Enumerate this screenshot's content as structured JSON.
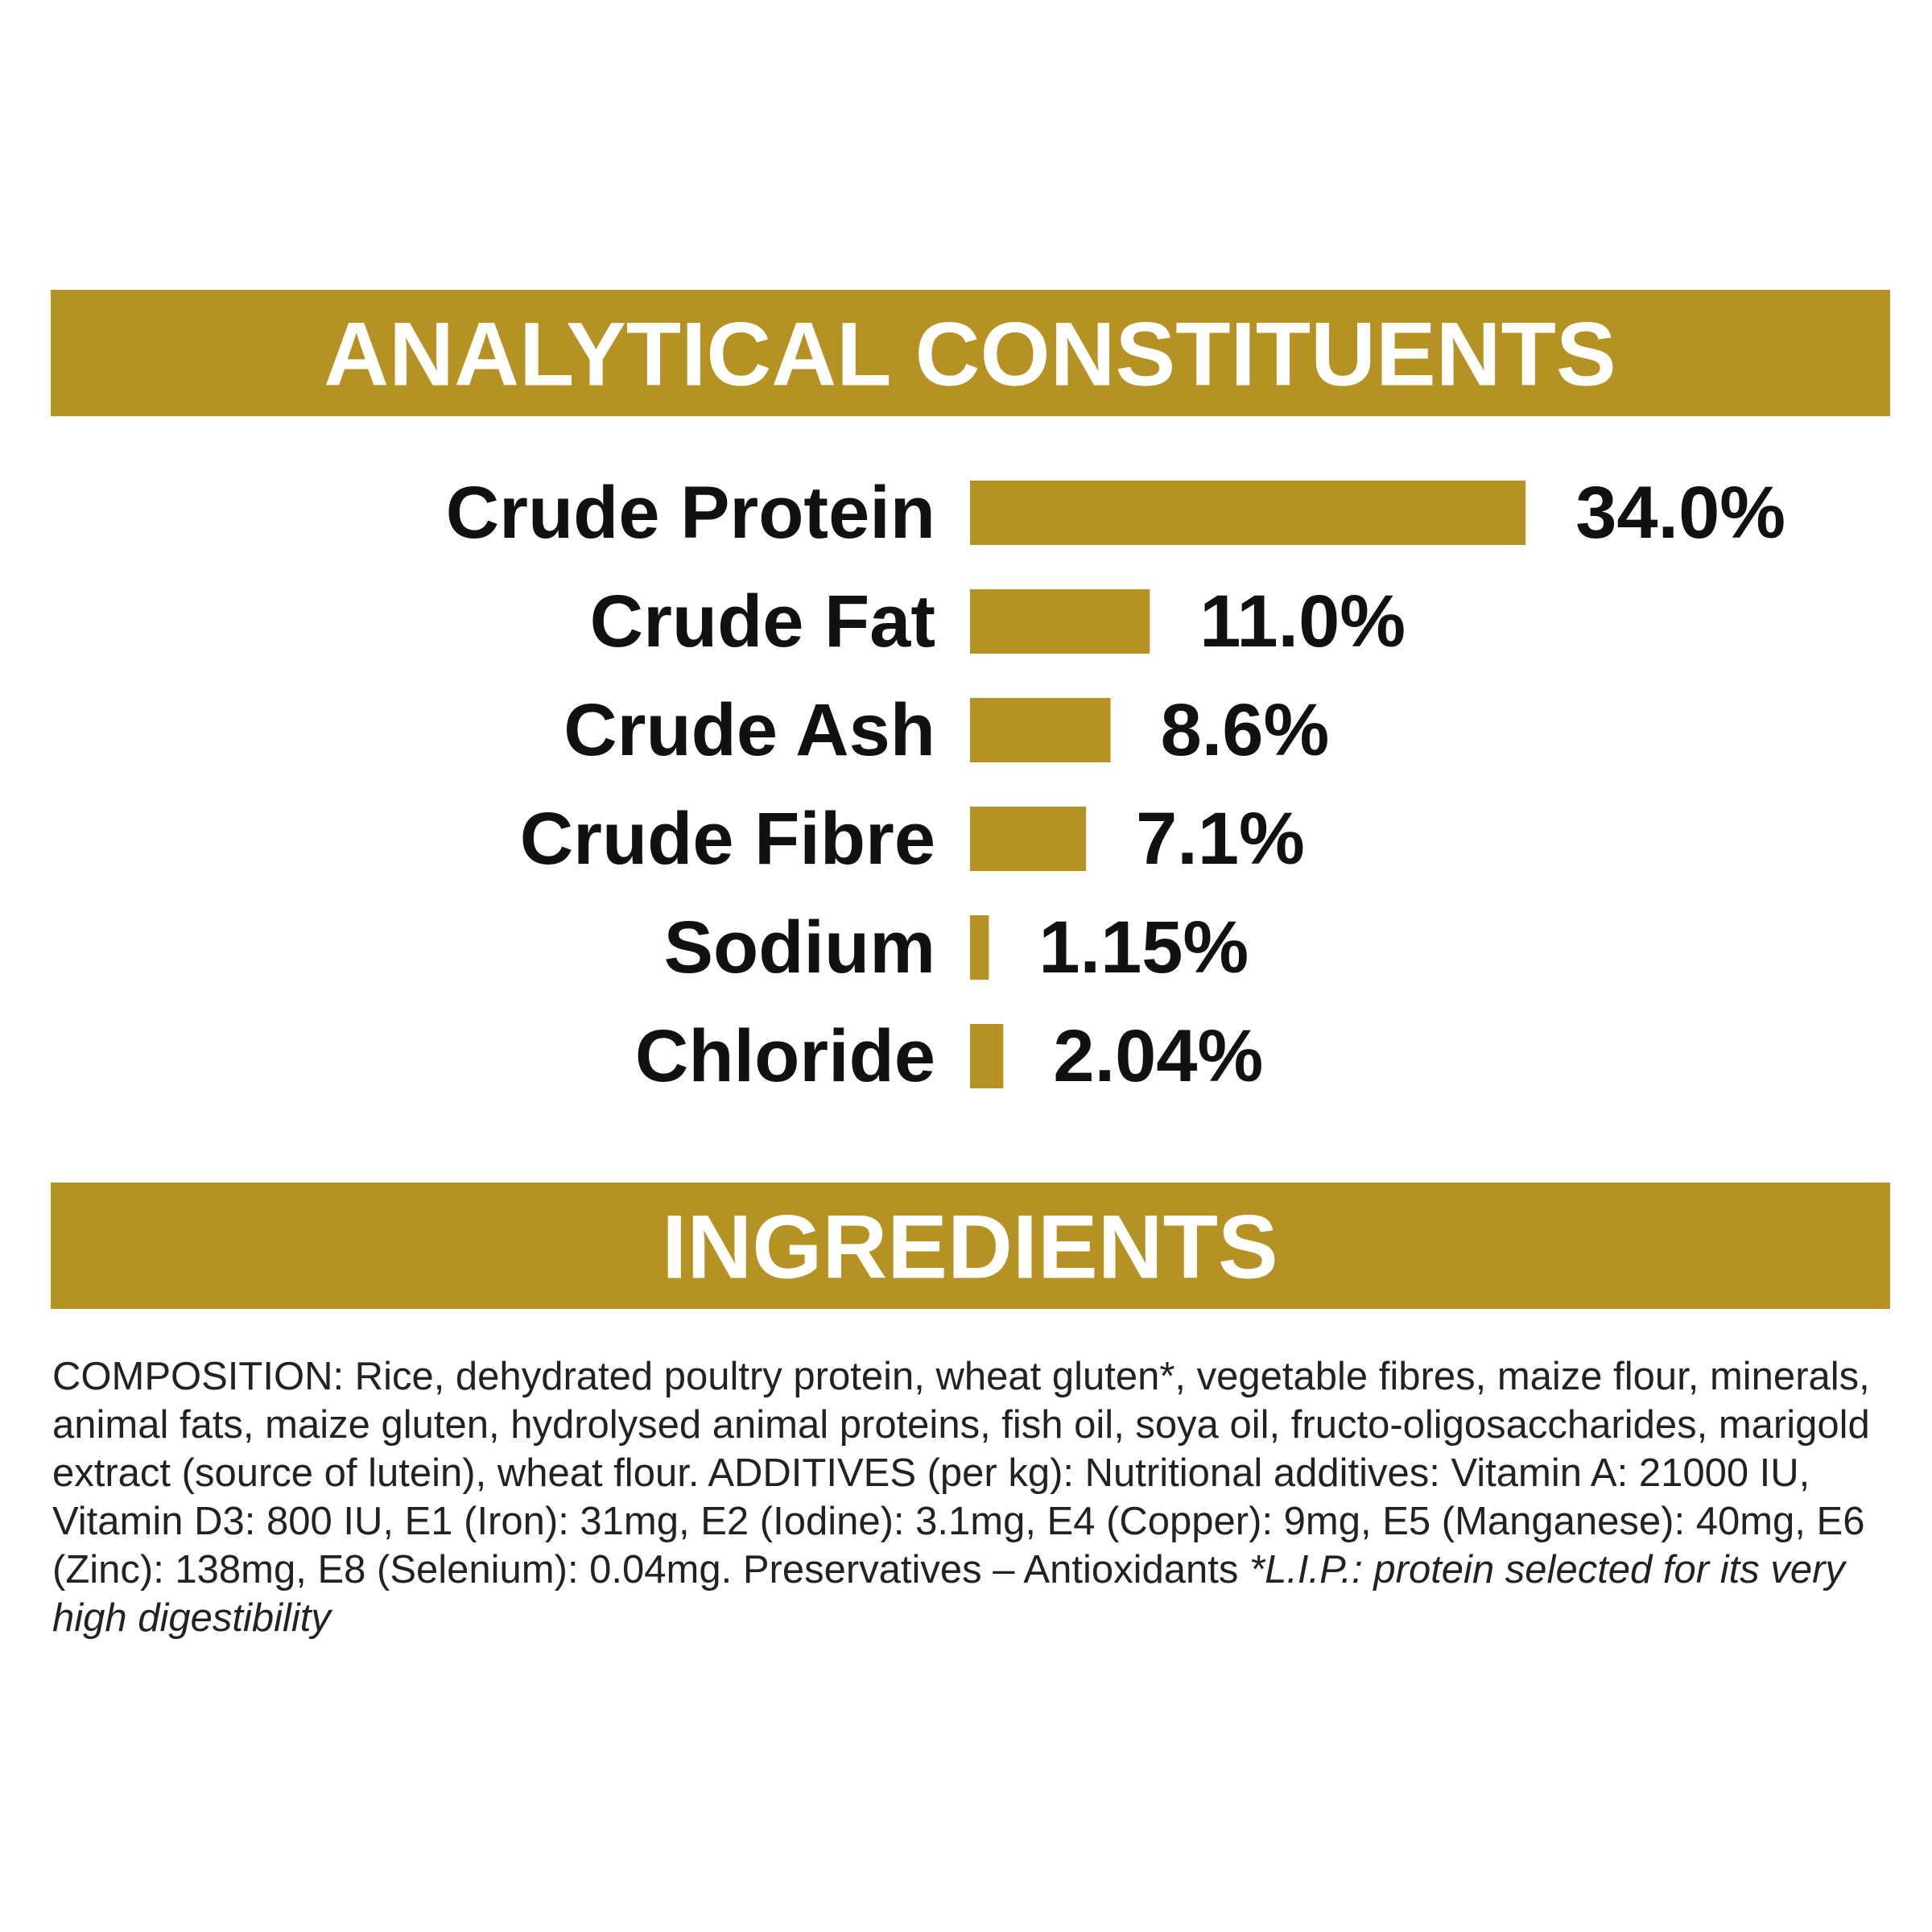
{
  "chart_data": {
    "type": "bar",
    "orientation": "horizontal",
    "title": "ANALYTICAL CONSTITUENTS",
    "categories": [
      "Crude Protein",
      "Crude Fat",
      "Crude Ash",
      "Crude Fibre",
      "Sodium",
      "Chloride"
    ],
    "values": [
      34.0,
      11.0,
      8.6,
      7.1,
      1.15,
      2.04
    ],
    "value_labels": [
      "34.0%",
      "11.0%",
      "8.6%",
      "7.1%",
      "1.15%",
      "2.04%"
    ],
    "color": "#b59223"
  },
  "ingredients": {
    "title": "INGREDIENTS",
    "text": "COMPOSITION: Rice, dehydrated poultry protein, wheat gluten*, vegetable fibres, maize flour, minerals, animal fats, maize gluten, hydrolysed animal proteins, fish oil, soya oil, fructo-oligosaccharides, marigold extract (source of lutein), wheat flour. ADDITIVES (per kg): Nutritional additives: Vitamin A: 21000 IU, Vitamin D3: 800 IU, E1 (Iron): 31mg, E2 (Iodine): 3.1mg, E4 (Copper): 9mg, E5 (Manganese): 40mg, E6 (Zinc): 138mg, E8 (Selenium): 0.04mg. Preservatives – Antioxidants",
    "note": "*L.I.P.: protein selected for its very high digestibility"
  }
}
